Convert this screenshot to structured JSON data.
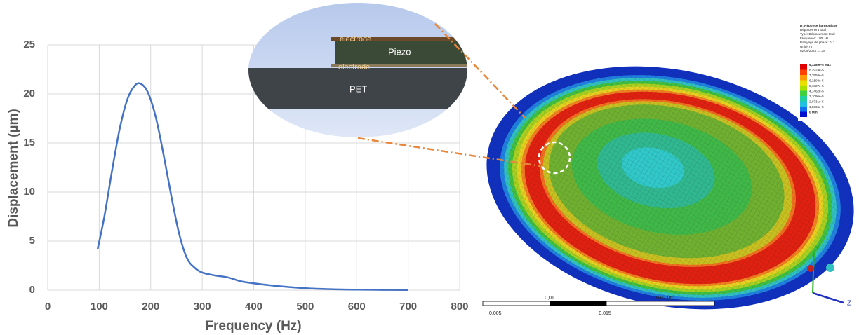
{
  "chart_data": {
    "type": "line",
    "x_label": "Frequency (Hz)",
    "y_label": "Displacement (µm)",
    "x": [
      97,
      110,
      125,
      140,
      155,
      170,
      182,
      195,
      210,
      225,
      240,
      255,
      270,
      285,
      300,
      325,
      350,
      375,
      400,
      450,
      500,
      550,
      600,
      650,
      700
    ],
    "series": [
      {
        "name": "Displacement",
        "color": "#4472c4",
        "values": [
          4.2,
          7.5,
          12.2,
          16.5,
          19.5,
          20.9,
          21.0,
          20.1,
          17.6,
          13.8,
          9.6,
          5.8,
          3.3,
          2.3,
          1.8,
          1.5,
          1.3,
          0.9,
          0.7,
          0.4,
          0.2,
          0.1,
          0.05,
          0.03,
          0.02
        ]
      }
    ],
    "xlim": [
      0,
      800
    ],
    "xticks": [
      0,
      100,
      200,
      300,
      400,
      500,
      600,
      700,
      800
    ],
    "ylim": [
      0,
      25
    ],
    "yticks": [
      0,
      5,
      10,
      15,
      20,
      25
    ],
    "grid": true
  },
  "cross_section": {
    "top_electrode": "electrode",
    "piezo": "Piezo",
    "bottom_electrode": "electrode",
    "substrate": "PET"
  },
  "simulation": {
    "info": [
      "D: Réponse harmonique",
      "Déplacement total",
      "Type: Déplacement total",
      "Fréquence: 180, Hz",
      "Balayage de phase: 0, °",
      "Unité: m",
      "02/05/2023 17:38"
    ],
    "legend": [
      {
        "label": "9,3289e-5 Max",
        "color": "#e00000"
      },
      {
        "label": "8,2924e-5",
        "color": "#ff4000"
      },
      {
        "label": "7,2559e-5",
        "color": "#ff9a00"
      },
      {
        "label": "6,2193e-5",
        "color": "#e8e000"
      },
      {
        "label": "5,1827e-5",
        "color": "#a8e000"
      },
      {
        "label": "4,1462e-5",
        "color": "#40d040"
      },
      {
        "label": "3,1096e-5",
        "color": "#20d0a0"
      },
      {
        "label": "2,0731e-5",
        "color": "#20c0e0"
      },
      {
        "label": "1,0365e-5",
        "color": "#1070f0"
      },
      {
        "label": "0 Min",
        "color": "#0010d0"
      }
    ],
    "scale_top": [
      "0,01",
      "0,02 (m)"
    ],
    "scale_bottom": [
      "0,005",
      "0,015"
    ],
    "axes": [
      "Y",
      "Z"
    ]
  }
}
